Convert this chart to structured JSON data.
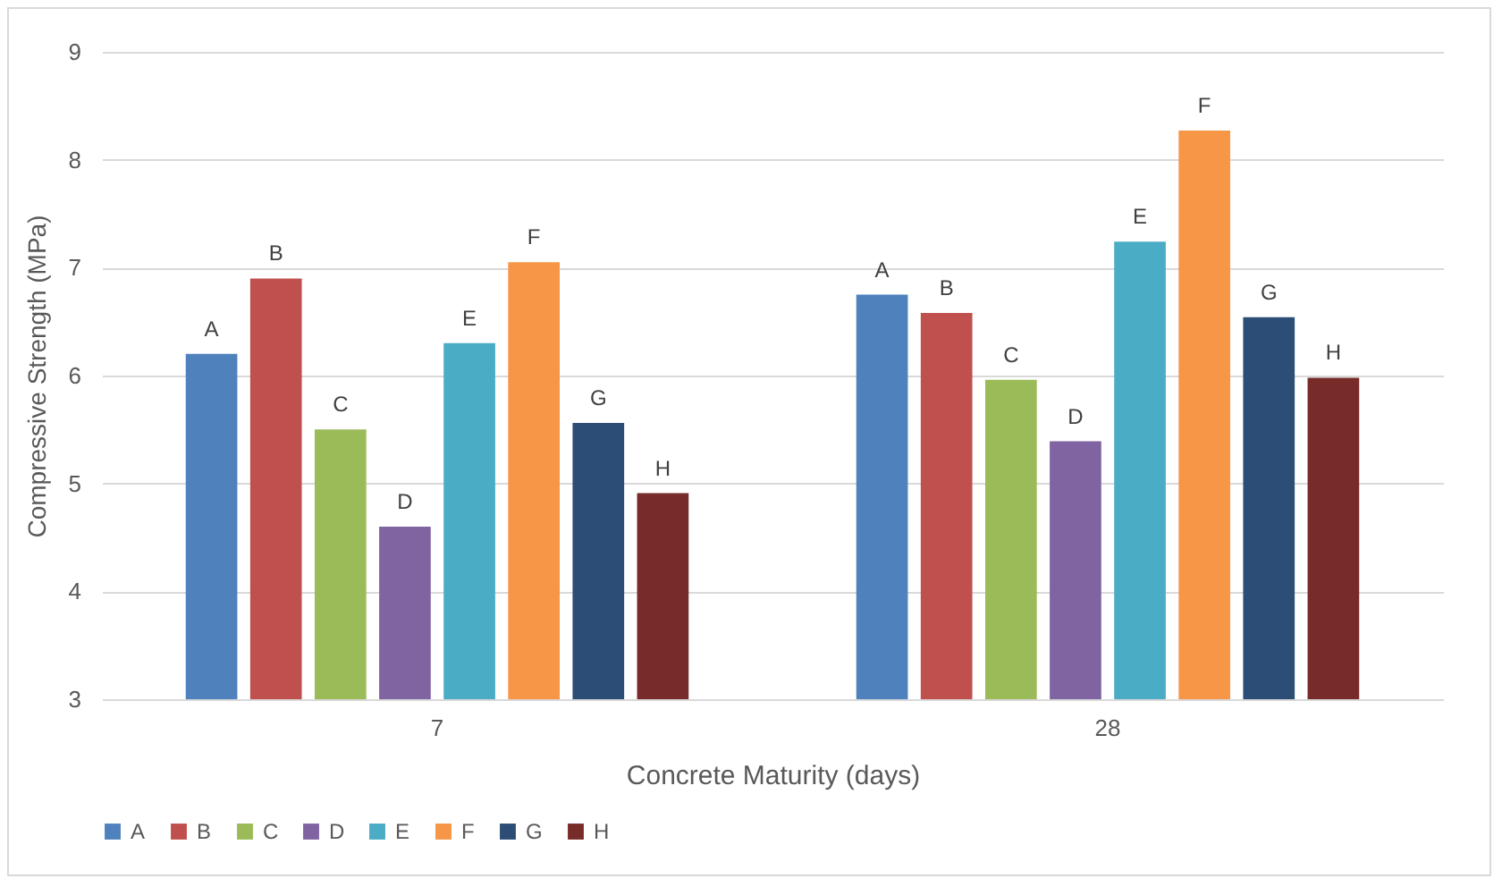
{
  "chart_data": {
    "type": "bar",
    "xlabel": "Concrete Maturity (days)",
    "ylabel": "Compressive Strength (MPa)",
    "categories": [
      "7",
      "28"
    ],
    "series": [
      {
        "name": "A",
        "color": "#4f81bd",
        "values": [
          6.2,
          6.75
        ]
      },
      {
        "name": "B",
        "color": "#c0504d",
        "values": [
          6.9,
          6.58
        ]
      },
      {
        "name": "C",
        "color": "#9bbb59",
        "values": [
          5.5,
          5.96
        ]
      },
      {
        "name": "D",
        "color": "#8064a2",
        "values": [
          4.6,
          5.39
        ]
      },
      {
        "name": "E",
        "color": "#4bacc6",
        "values": [
          6.3,
          7.24
        ]
      },
      {
        "name": "F",
        "color": "#f79646",
        "values": [
          7.05,
          8.27
        ]
      },
      {
        "name": "G",
        "color": "#2c4d75",
        "values": [
          5.56,
          6.54
        ]
      },
      {
        "name": "H",
        "color": "#772c2a",
        "values": [
          4.91,
          5.98
        ]
      }
    ],
    "ylim": [
      3,
      9
    ],
    "yticks": [
      3,
      4,
      5,
      6,
      7,
      8,
      9
    ],
    "grid": "y",
    "legend": "bottom"
  }
}
